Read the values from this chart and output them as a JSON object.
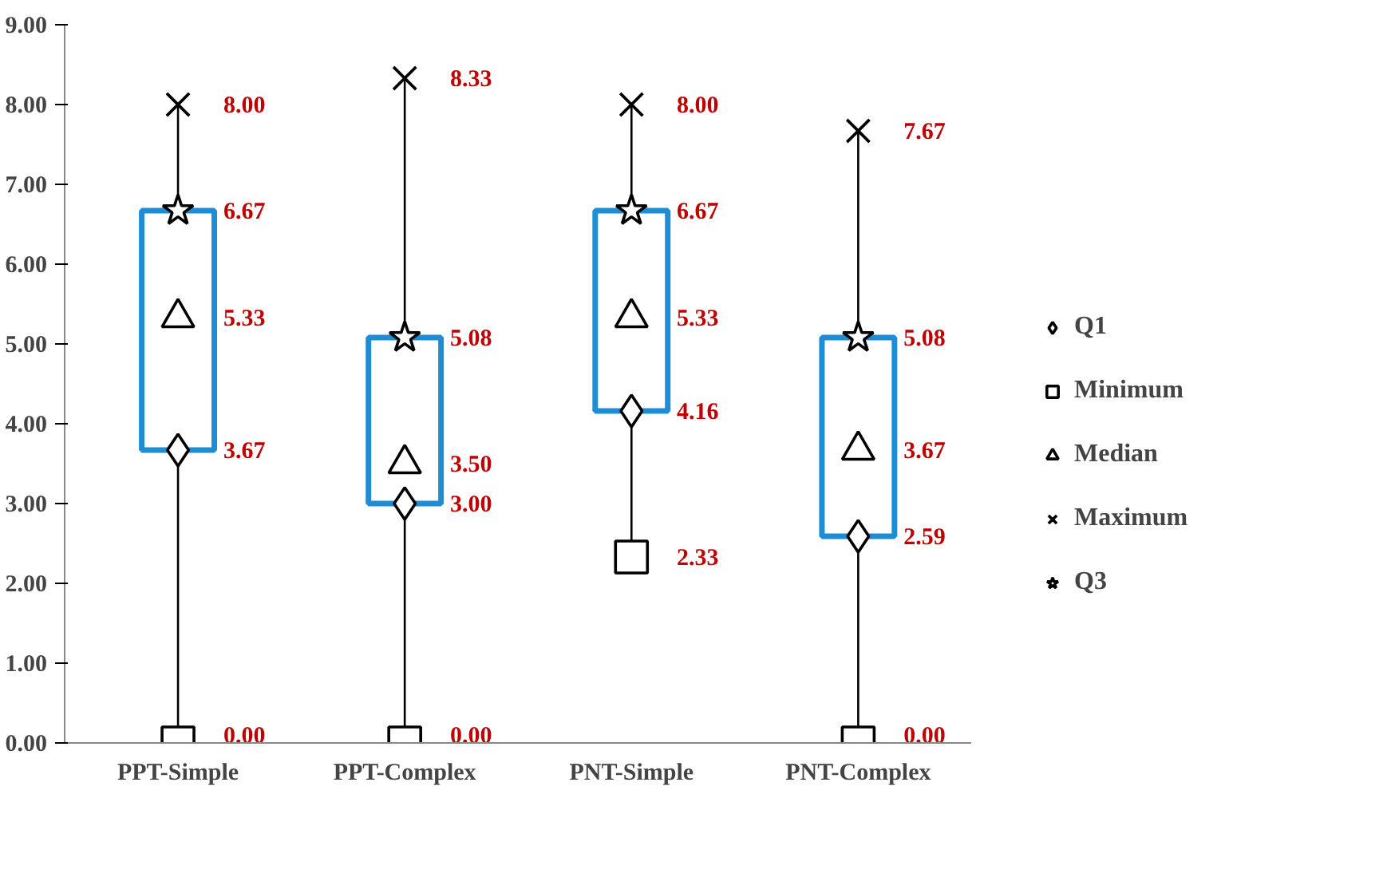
{
  "chart_data": {
    "type": "box",
    "categories": [
      "PPT-Simple",
      "PPT-Complex",
      "PNT-Simple",
      "PNT-Complex"
    ],
    "boxes": [
      {
        "low": 0.0,
        "q1": 3.67,
        "q3": 6.67,
        "high": 8.0
      },
      {
        "low": 0.0,
        "q1": 3.0,
        "q3": 5.08,
        "high": 8.33
      },
      {
        "low": 2.33,
        "q1": 4.16,
        "q3": 6.67,
        "high": 8.0
      },
      {
        "low": 0.0,
        "q1": 2.59,
        "q3": 5.08,
        "high": 7.67
      }
    ],
    "color": "#1f8dd6",
    "series": [
      {
        "name": "Q1",
        "type": "scatter",
        "marker": "diamond",
        "color": "#000000",
        "values": [
          3.67,
          3.0,
          4.16,
          2.59
        ],
        "value_labels": [
          "3.67",
          "3.00",
          "4.16",
          "2.59"
        ]
      },
      {
        "name": "Minimum",
        "type": "scatter",
        "marker": "square",
        "color": "#000000",
        "values": [
          0.0,
          0.0,
          2.33,
          0.0
        ],
        "value_labels": [
          "0.00",
          "0.00",
          "2.33",
          "0.00"
        ]
      },
      {
        "name": "Median",
        "type": "scatter",
        "marker": "triangle",
        "color": "#000000",
        "values": [
          5.33,
          3.5,
          5.33,
          3.67
        ],
        "value_labels": [
          "5.33",
          "3.50",
          "5.33",
          "3.67"
        ]
      },
      {
        "name": "Maximum",
        "type": "scatter",
        "marker": "cross",
        "color": "#000000",
        "values": [
          8.0,
          8.33,
          8.0,
          7.67
        ],
        "value_labels": [
          "8.00",
          "8.33",
          "8.00",
          "7.67"
        ]
      },
      {
        "name": "Q3",
        "type": "scatter",
        "marker": "star",
        "color": "#000000",
        "values": [
          6.67,
          5.08,
          6.67,
          5.08
        ],
        "value_labels": [
          "6.67",
          "5.08",
          "6.67",
          "5.08"
        ]
      }
    ],
    "ylim": [
      0,
      9
    ],
    "yticks": [
      {
        "value": 0,
        "label": "0.00"
      },
      {
        "value": 1,
        "label": "1.00"
      },
      {
        "value": 2,
        "label": "2.00"
      },
      {
        "value": 3,
        "label": "3.00"
      },
      {
        "value": 4,
        "label": "4.00"
      },
      {
        "value": 5,
        "label": "5.00"
      },
      {
        "value": 6,
        "label": "6.00"
      },
      {
        "value": 7,
        "label": "7.00"
      },
      {
        "value": 8,
        "label": "8.00"
      },
      {
        "value": 9,
        "label": "9.00"
      }
    ],
    "grid": false,
    "legend": "right"
  }
}
